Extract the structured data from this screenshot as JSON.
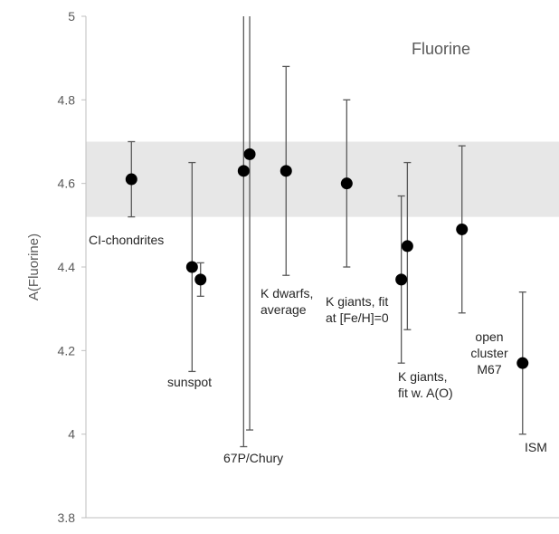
{
  "chart_data": {
    "type": "scatter",
    "title": "Fluorine",
    "xlabel": "",
    "ylabel": "A(Fluorine)",
    "ylim": [
      3.8,
      5.0
    ],
    "yticks": [
      "3.8",
      "4",
      "4.2",
      "4.4",
      "4.6",
      "4.8",
      "5"
    ],
    "band": {
      "from": 4.52,
      "to": 4.7
    },
    "grid": false,
    "legend": "none",
    "colors": {
      "marker": "#000000",
      "errorbar": "#595959",
      "band": "#e7e7e7",
      "axis": "#bfbfbf",
      "text": "#595959"
    },
    "points": [
      {
        "x": 1.0,
        "y": 4.61,
        "lo": 4.52,
        "hi": 4.7,
        "label": "CI-chondrites"
      },
      {
        "x": 2.0,
        "y": 4.4,
        "lo": 4.15,
        "hi": 4.65,
        "label": "sunspot"
      },
      {
        "x": 2.14,
        "y": 4.37,
        "lo": 4.33,
        "hi": 4.41,
        "label": ""
      },
      {
        "x": 2.85,
        "y": 4.63,
        "lo": 3.97,
        "hi": 5.0,
        "label": "67P/Chury"
      },
      {
        "x": 2.95,
        "y": 4.67,
        "lo": 4.01,
        "hi": 5.0,
        "label": ""
      },
      {
        "x": 3.55,
        "y": 4.63,
        "lo": 4.38,
        "hi": 4.88,
        "label": "K dwarfs,\naverage"
      },
      {
        "x": 4.55,
        "y": 4.6,
        "lo": 4.4,
        "hi": 4.8,
        "label": "K giants, fit\nat [Fe/H]=0"
      },
      {
        "x": 5.45,
        "y": 4.37,
        "lo": 4.17,
        "hi": 4.57,
        "label": "K giants,\nfit w. A(O)"
      },
      {
        "x": 5.55,
        "y": 4.45,
        "lo": 4.25,
        "hi": 4.65,
        "label": ""
      },
      {
        "x": 6.45,
        "y": 4.49,
        "lo": 4.29,
        "hi": 4.69,
        "label": "open\ncluster\nM67"
      },
      {
        "x": 7.45,
        "y": 4.17,
        "lo": 4.0,
        "hi": 4.34,
        "label": "ISM"
      }
    ]
  }
}
